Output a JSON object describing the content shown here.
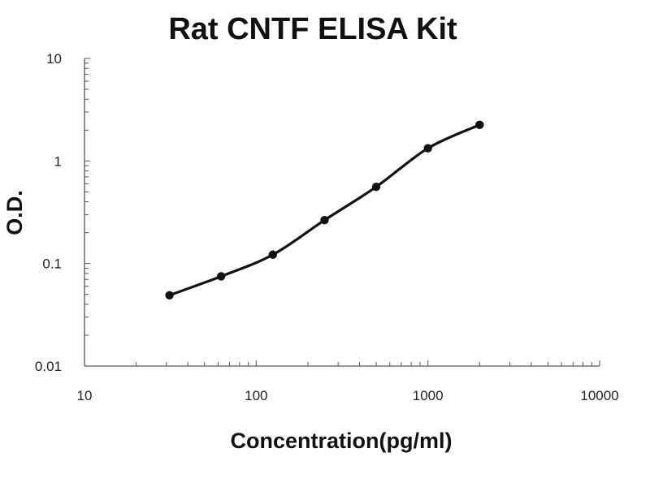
{
  "chart_data": {
    "type": "scatter",
    "title": "Rat CNTF ELISA Kit",
    "xlabel": "Concentration(pg/ml)",
    "ylabel": "O.D.",
    "xscale": "log",
    "yscale": "log",
    "xlim": [
      10,
      10000
    ],
    "ylim": [
      0.01,
      10
    ],
    "xticks": [
      "10",
      "100",
      "1000",
      "10000"
    ],
    "yticks": [
      "0.01",
      "0.1",
      "1",
      "10"
    ],
    "grid": false,
    "legend": "none",
    "colors": {
      "points": "#111111",
      "curve": "#111111",
      "axes": "#555555"
    },
    "series": [
      {
        "points": [
          {
            "x": 31.25,
            "y": 0.049
          },
          {
            "x": 62.5,
            "y": 0.075
          },
          {
            "x": 125,
            "y": 0.122
          },
          {
            "x": 250,
            "y": 0.265
          },
          {
            "x": 500,
            "y": 0.56
          },
          {
            "x": 1000,
            "y": 1.33
          },
          {
            "x": 2000,
            "y": 2.25
          }
        ],
        "fit_curve": true
      }
    ]
  }
}
